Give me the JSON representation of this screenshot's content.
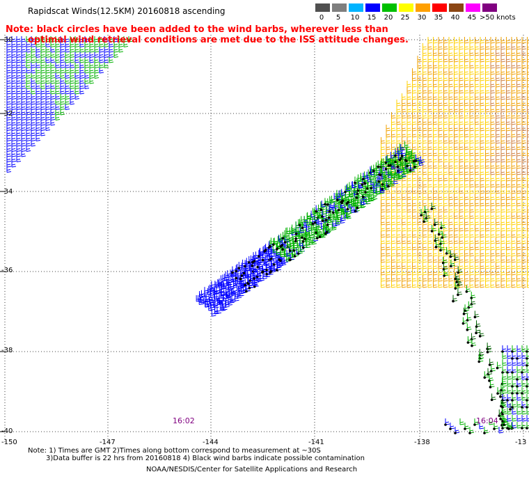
{
  "header": {
    "title": "Rapidscat Winds(12.5KM) 20160818 ascending"
  },
  "note": {
    "line1": "Note: black circles have been added to the wind barbs, wherever less than",
    "line2": "optimal wind retrieval conditions are met due to the ISS attitude changes."
  },
  "legend": {
    "labels": [
      "0",
      "5",
      "10",
      "15",
      "20",
      "25",
      "30",
      "35",
      "40",
      "45",
      ">50 knots"
    ],
    "colors": [
      "#505050",
      "#7f7f7f",
      "#00b4ff",
      "#0000ff",
      "#00c000",
      "#ffff00",
      "#ffa000",
      "#ff0000",
      "#8b4513",
      "#ff00ff",
      "#800080"
    ]
  },
  "axes": {
    "lat_labels": [
      "-30",
      "-32",
      "-34",
      "-36",
      "-38",
      "-40"
    ],
    "lon_labels": [
      "-150",
      "-147",
      "-144",
      "-141",
      "-138",
      "-13"
    ]
  },
  "times": [
    "16:02",
    "16:04"
  ],
  "footer": {
    "line1": "Note: 1) Times are GMT 2)Times along bottom correspond to measurement at ~30S",
    "line2": "3)Data buffer is 22 hrs from 20160818 4) Black wind barbs indicate possible contamination",
    "line3": "NOAA/NESDIS/Center for Satellite Applications and Research"
  },
  "colors": {
    "grid": "#000000",
    "note": "#ff0000",
    "time": "#800080",
    "barb_blue": "#0000ff",
    "barb_green": "#00b000",
    "barb_yellow": "#ffd000",
    "barb_orange": "#f0a000",
    "contaminated": "#000000"
  }
}
